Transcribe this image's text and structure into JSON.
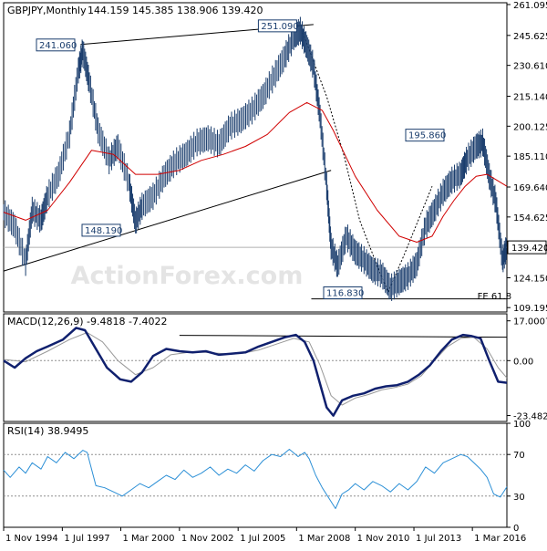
{
  "chart_data": [
    {
      "type": "line",
      "panel": "price",
      "title": "GBPJPY,Monthly",
      "ohlc_text": "144.159 145.385 138.906 139.420",
      "x_ticks": [
        "1 Nov 1994",
        "1 Jul 1997",
        "1 Mar 2000",
        "1 Nov 2002",
        "1 Jul 2005",
        "1 Mar 2008",
        "1 Nov 2010",
        "1 Jul 2013",
        "1 Mar 2016"
      ],
      "y_ticks": [
        109.195,
        124.15,
        139.42,
        154.625,
        169.64,
        185.11,
        200.125,
        215.14,
        230.61,
        245.625,
        261.095
      ],
      "ylim": [
        107.0,
        262.0
      ],
      "current_value": "139.420",
      "watermark": "ActionForex.com",
      "annotations": [
        {
          "label": "241.060",
          "x": 1997.5,
          "y": 241.06
        },
        {
          "label": "251.090",
          "x": 2007.5,
          "y": 251.09
        },
        {
          "label": "148.190",
          "x": 2000.2,
          "y": 148.19
        },
        {
          "label": "116.830",
          "x": 2011.2,
          "y": 116.83
        },
        {
          "label": "195.860",
          "x": 2015.1,
          "y": 195.86
        },
        {
          "label": "FE 61.8",
          "x": 2016.8,
          "y": 112.5
        }
      ],
      "price_series": {
        "x": [
          1994.0,
          1994.5,
          1995.0,
          1995.3,
          1995.7,
          1996.0,
          1996.5,
          1997.0,
          1997.4,
          1997.6,
          1997.9,
          1998.3,
          1998.8,
          1999.2,
          1999.7,
          2000.0,
          2000.3,
          2000.8,
          2001.3,
          2001.8,
          2002.3,
          2002.8,
          2003.3,
          2003.8,
          2004.3,
          2004.8,
          2005.3,
          2005.8,
          2006.3,
          2006.8,
          2007.2,
          2007.5,
          2007.8,
          2008.1,
          2008.4,
          2008.7,
          2008.9,
          2009.2,
          2009.6,
          2010.0,
          2010.4,
          2010.8,
          2011.2,
          2011.6,
          2012.0,
          2012.4,
          2012.8,
          2013.2,
          2013.6,
          2014.0,
          2014.4,
          2014.8,
          2015.1,
          2015.5,
          2015.8,
          2016.1,
          2016.4,
          2016.7,
          2016.9
        ],
        "y": [
          157,
          150,
          132,
          158,
          153,
          165,
          176,
          196,
          228,
          238,
          222,
          198,
          183,
          190,
          172,
          152,
          160,
          165,
          175,
          182,
          186,
          192,
          194,
          191,
          200,
          203,
          208,
          215,
          225,
          235,
          245,
          248,
          240,
          230,
          205,
          170,
          140,
          130,
          145,
          137,
          133,
          128,
          126,
          119,
          122,
          125,
          131,
          150,
          158,
          167,
          173,
          176,
          184,
          190,
          192,
          175,
          162,
          133,
          139.42
        ]
      },
      "moving_average": {
        "x": [
          1994.0,
          1995.0,
          1996.0,
          1997.0,
          1998.0,
          1999.0,
          2000.0,
          2001.0,
          2002.0,
          2003.0,
          2004.0,
          2005.0,
          2006.0,
          2007.0,
          2007.8,
          2008.5,
          2009.0,
          2010.0,
          2011.0,
          2012.0,
          2012.8,
          2013.5,
          2014.0,
          2014.5,
          2015.0,
          2015.5,
          2016.0,
          2016.9
        ],
        "y": [
          157,
          153,
          158,
          172,
          188,
          186,
          176,
          176,
          178,
          183,
          186,
          190,
          196,
          207,
          212,
          208,
          198,
          175,
          158,
          145,
          142,
          145,
          155,
          163,
          170,
          175,
          176,
          170
        ]
      },
      "trendlines": [
        {
          "x": [
            1997.5,
            2008.1
          ],
          "y": [
            241.06,
            251.09
          ]
        },
        {
          "x": [
            1994.0,
            2008.9
          ],
          "y": [
            127.5,
            178.0
          ]
        },
        {
          "x": [
            2008.0,
            2016.9
          ],
          "y": [
            113.6,
            113.6
          ]
        }
      ],
      "fib_dotted": {
        "x": [
          2007.6,
          2008.7,
          2009.5,
          2010.2,
          2011.0,
          2011.5,
          2012.2,
          2013.5
        ],
        "y": [
          247,
          215,
          185,
          153,
          130,
          117,
          135,
          170
        ]
      }
    },
    {
      "type": "line",
      "panel": "macd",
      "title": "MACD(12,26,9) -9.4818 -7.4022",
      "y_ticks": [
        17.0007,
        0.0,
        -23.4823
      ],
      "ylim": [
        -26.0,
        20.0
      ],
      "macd_series": {
        "x": [
          1994.0,
          1994.5,
          1995.0,
          1995.5,
          1996.0,
          1996.7,
          1997.3,
          1997.7,
          1998.2,
          1998.7,
          1999.3,
          1999.8,
          2000.3,
          2000.8,
          2001.4,
          2002.0,
          2002.6,
          2003.2,
          2003.8,
          2004.4,
          2005.0,
          2005.6,
          2006.2,
          2006.8,
          2007.3,
          2007.7,
          2008.1,
          2008.4,
          2008.7,
          2009.0,
          2009.4,
          2009.9,
          2010.4,
          2010.9,
          2011.4,
          2011.9,
          2012.4,
          2012.9,
          2013.4,
          2013.9,
          2014.4,
          2014.9,
          2015.3,
          2015.7,
          2016.1,
          2016.5,
          2016.9
        ],
        "y": [
          0.0,
          -3.0,
          1.0,
          4.0,
          6.0,
          9.0,
          14.0,
          13.0,
          5.0,
          -3.0,
          -8.0,
          -9.0,
          -5.0,
          2.0,
          5.0,
          4.0,
          3.5,
          4.0,
          2.5,
          3.0,
          3.5,
          6.0,
          8.0,
          10.0,
          11.0,
          8.0,
          0.0,
          -10.0,
          -20.0,
          -23.5,
          -17.0,
          -15.0,
          -14.0,
          -12.0,
          -11.0,
          -10.5,
          -9.0,
          -6.0,
          -2.0,
          4.0,
          9.0,
          11.0,
          10.5,
          9.5,
          0.0,
          -9.0,
          -9.4818
        ]
      },
      "signal_series": {
        "x": [
          1994.0,
          1995.0,
          1996.0,
          1997.0,
          1997.8,
          1998.5,
          1999.2,
          2000.0,
          2000.8,
          2001.6,
          2002.4,
          2003.2,
          2004.0,
          2004.8,
          2005.6,
          2006.4,
          2007.2,
          2007.9,
          2008.4,
          2008.9,
          2009.4,
          2010.0,
          2010.6,
          2011.2,
          2011.8,
          2012.4,
          2013.0,
          2013.6,
          2014.2,
          2014.8,
          2015.4,
          2016.0,
          2016.5,
          2016.9
        ],
        "y": [
          0.5,
          -0.5,
          4.0,
          9.0,
          12.0,
          8.0,
          0.0,
          -6.0,
          -3.0,
          2.5,
          3.5,
          3.5,
          3.0,
          3.0,
          4.5,
          7.0,
          9.5,
          8.0,
          -2.0,
          -15.0,
          -19.0,
          -16.0,
          -14.5,
          -12.5,
          -11.5,
          -10.0,
          -6.5,
          0.0,
          6.0,
          9.5,
          10.0,
          5.0,
          -3.0,
          -7.4022
        ]
      },
      "resistance": {
        "x": [
          2002.0,
          2016.9
        ],
        "y": [
          10.8,
          10.0
        ]
      }
    },
    {
      "type": "line",
      "panel": "rsi",
      "title": "RSI(14) 38.9495",
      "y_ticks": [
        100,
        70,
        30,
        0
      ],
      "ylim": [
        0,
        100
      ],
      "rsi_series": {
        "x": [
          1994.0,
          1994.3,
          1994.7,
          1995.0,
          1995.3,
          1995.7,
          1996.0,
          1996.4,
          1996.8,
          1997.2,
          1997.6,
          1997.8,
          1998.2,
          1998.6,
          1999.0,
          1999.4,
          1999.8,
          2000.2,
          2000.6,
          2001.0,
          2001.4,
          2001.8,
          2002.2,
          2002.6,
          2003.0,
          2003.4,
          2003.8,
          2004.2,
          2004.6,
          2005.0,
          2005.4,
          2005.8,
          2006.2,
          2006.6,
          2007.0,
          2007.4,
          2007.7,
          2007.9,
          2008.2,
          2008.5,
          2008.8,
          2009.1,
          2009.4,
          2009.7,
          2010.0,
          2010.4,
          2010.8,
          2011.2,
          2011.6,
          2012.0,
          2012.4,
          2012.8,
          2013.2,
          2013.6,
          2014.0,
          2014.4,
          2014.8,
          2015.1,
          2015.4,
          2015.7,
          2016.0,
          2016.3,
          2016.6,
          2016.9
        ],
        "y": [
          55,
          48,
          58,
          52,
          62,
          56,
          68,
          62,
          72,
          66,
          74,
          72,
          40,
          38,
          34,
          30,
          36,
          42,
          38,
          44,
          50,
          46,
          55,
          48,
          52,
          58,
          50,
          56,
          52,
          60,
          54,
          64,
          70,
          68,
          75,
          68,
          72,
          66,
          50,
          38,
          28,
          18,
          32,
          36,
          42,
          36,
          44,
          40,
          34,
          42,
          36,
          44,
          58,
          52,
          62,
          66,
          70,
          68,
          62,
          56,
          48,
          32,
          29,
          38.9495
        ]
      },
      "levels": [
        70,
        30
      ]
    }
  ]
}
